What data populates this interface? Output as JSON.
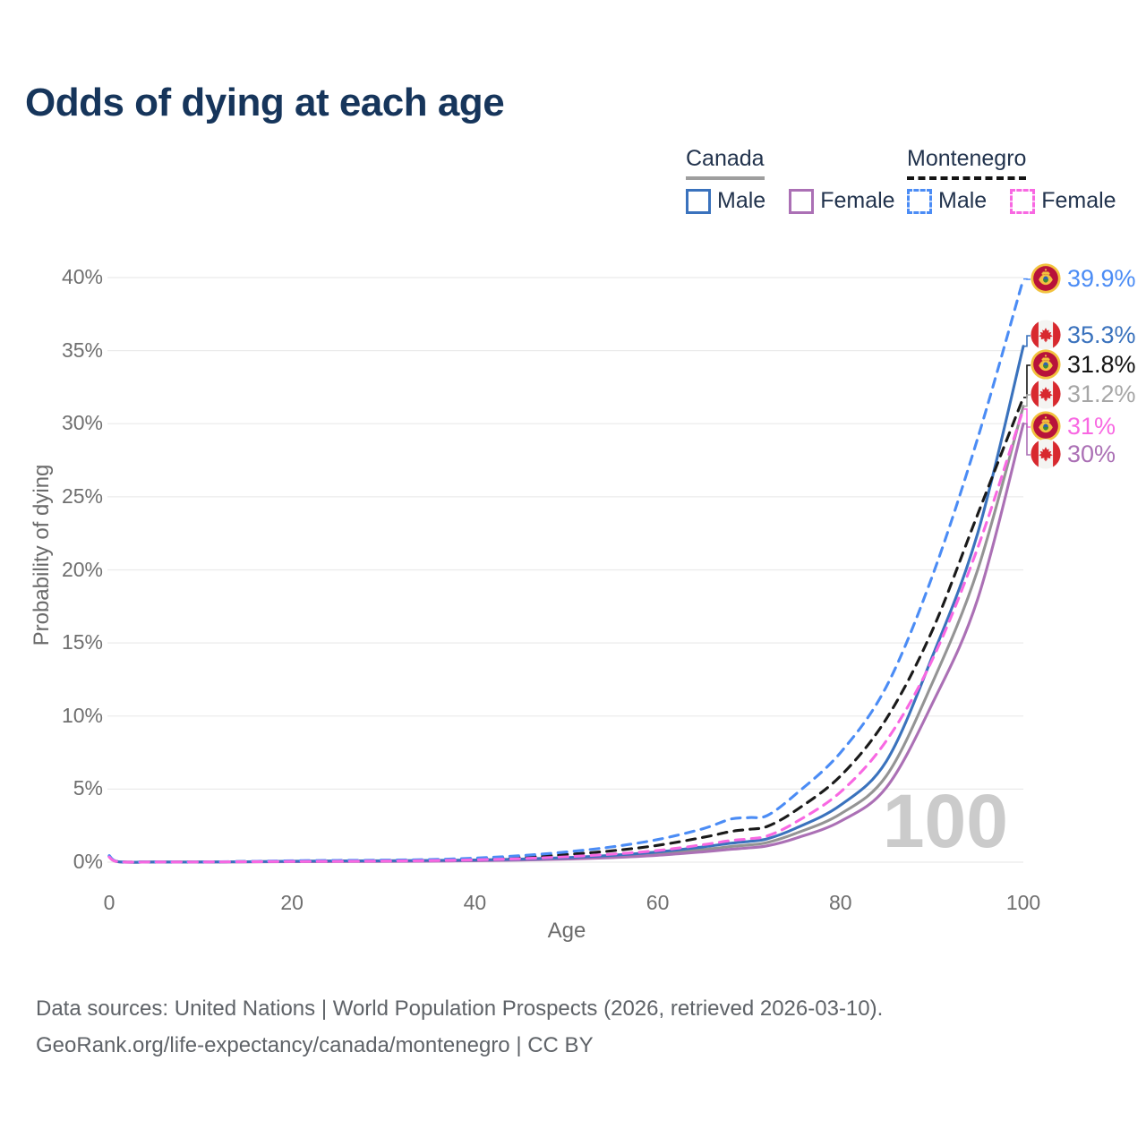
{
  "title": "Odds of dying at each age",
  "legend": {
    "groups": [
      {
        "label": "Canada",
        "underline_style": "solid",
        "underline_color": "#9e9e9e",
        "items": [
          {
            "label": "Male",
            "color": "#3a72bd",
            "dash": false
          },
          {
            "label": "Female",
            "color": "#ab70b5",
            "dash": false
          }
        ]
      },
      {
        "label": "Montenegro",
        "underline_style": "dashed",
        "underline_color": "#141414",
        "items": [
          {
            "label": "Male",
            "color": "#4b8cf5",
            "dash": true
          },
          {
            "label": "Female",
            "color": "#f868e2",
            "dash": true
          }
        ]
      }
    ]
  },
  "chart_data": {
    "type": "line",
    "title": "Odds of dying at each age",
    "xlabel": "Age",
    "ylabel": "Probability of dying",
    "xlim": [
      0,
      100
    ],
    "ylim": [
      0,
      40
    ],
    "grid": true,
    "legend_position": "top-right",
    "age_counter": "100",
    "x_ticks": {
      "values": [
        0,
        20,
        40,
        60,
        80,
        100
      ],
      "labels": [
        "0",
        "20",
        "40",
        "60",
        "80",
        "100"
      ]
    },
    "y_ticks": {
      "values": [
        0,
        5,
        10,
        15,
        20,
        25,
        30,
        35,
        40
      ],
      "labels": [
        "0%",
        "5%",
        "10%",
        "15%",
        "20%",
        "25%",
        "30%",
        "35%",
        "40%"
      ]
    },
    "x": [
      0,
      1,
      5,
      10,
      15,
      20,
      25,
      30,
      35,
      40,
      45,
      50,
      55,
      60,
      65,
      68,
      70,
      72,
      75,
      80,
      85,
      90,
      95,
      100
    ],
    "series": [
      {
        "name": "Montenegro Male",
        "country": "Montenegro",
        "sex": "Male",
        "style": "dashed",
        "color": "#4b8cf5",
        "label_color": "#4b8cf5",
        "flag": "montenegro",
        "end_label": "39.9%",
        "values": [
          0.45,
          0.04,
          0.02,
          0.02,
          0.05,
          0.1,
          0.12,
          0.14,
          0.18,
          0.28,
          0.45,
          0.7,
          1.05,
          1.55,
          2.3,
          2.95,
          3.05,
          3.2,
          4.6,
          7.5,
          12.0,
          19.5,
          29.0,
          39.9
        ]
      },
      {
        "name": "Canada Male",
        "country": "Canada",
        "sex": "Male",
        "style": "solid",
        "color": "#3a72bd",
        "label_color": "#3a72bd",
        "flag": "canada",
        "end_label": "35.3%",
        "values": [
          0.45,
          0.03,
          0.01,
          0.01,
          0.03,
          0.07,
          0.09,
          0.1,
          0.12,
          0.15,
          0.21,
          0.31,
          0.47,
          0.7,
          1.05,
          1.3,
          1.42,
          1.6,
          2.3,
          3.9,
          6.9,
          14.0,
          22.5,
          35.3
        ]
      },
      {
        "name": "Montenegro Both sexes",
        "country": "Montenegro",
        "sex": "Both",
        "style": "dashed",
        "color": "#1a1a1a",
        "label_color": "#141414",
        "flag": "montenegro",
        "end_label": "31.8%",
        "values": [
          0.4,
          0.035,
          0.02,
          0.02,
          0.04,
          0.07,
          0.09,
          0.11,
          0.14,
          0.21,
          0.33,
          0.52,
          0.78,
          1.15,
          1.7,
          2.1,
          2.25,
          2.45,
          3.5,
          5.9,
          9.8,
          15.8,
          23.8,
          31.8
        ]
      },
      {
        "name": "Canada Both sexes",
        "country": "Canada",
        "sex": "Both",
        "style": "solid",
        "color": "#949494",
        "label_color": "#a6a6a6",
        "flag": "canada",
        "end_label": "31.2%",
        "values": [
          0.42,
          0.03,
          0.01,
          0.01,
          0.025,
          0.05,
          0.07,
          0.08,
          0.1,
          0.13,
          0.18,
          0.26,
          0.39,
          0.58,
          0.87,
          1.07,
          1.18,
          1.35,
          1.95,
          3.3,
          5.9,
          12.2,
          20.0,
          31.2
        ]
      },
      {
        "name": "Montenegro Female",
        "country": "Montenegro",
        "sex": "Female",
        "style": "dashed",
        "color": "#f868e2",
        "label_color": "#f868e2",
        "flag": "montenegro",
        "end_label": "31%",
        "values": [
          0.35,
          0.03,
          0.015,
          0.015,
          0.03,
          0.05,
          0.06,
          0.08,
          0.11,
          0.16,
          0.24,
          0.37,
          0.55,
          0.8,
          1.2,
          1.48,
          1.6,
          1.8,
          2.7,
          4.8,
          8.3,
          13.8,
          21.5,
          31.0
        ]
      },
      {
        "name": "Canada Female",
        "country": "Canada",
        "sex": "Female",
        "style": "solid",
        "color": "#ab70b5",
        "label_color": "#ab70b5",
        "flag": "canada",
        "end_label": "30%",
        "values": [
          0.38,
          0.025,
          0.01,
          0.01,
          0.02,
          0.03,
          0.04,
          0.05,
          0.07,
          0.1,
          0.14,
          0.21,
          0.31,
          0.47,
          0.71,
          0.88,
          0.98,
          1.12,
          1.62,
          2.8,
          5.1,
          10.8,
          18.0,
          30.0
        ]
      }
    ]
  },
  "footer": {
    "line1": "Data sources: United Nations | World Population Prospects (2026, retrieved 2026-03-10).",
    "line2": "GeoRank.org/life-expectancy/canada/montenegro | CC BY"
  }
}
